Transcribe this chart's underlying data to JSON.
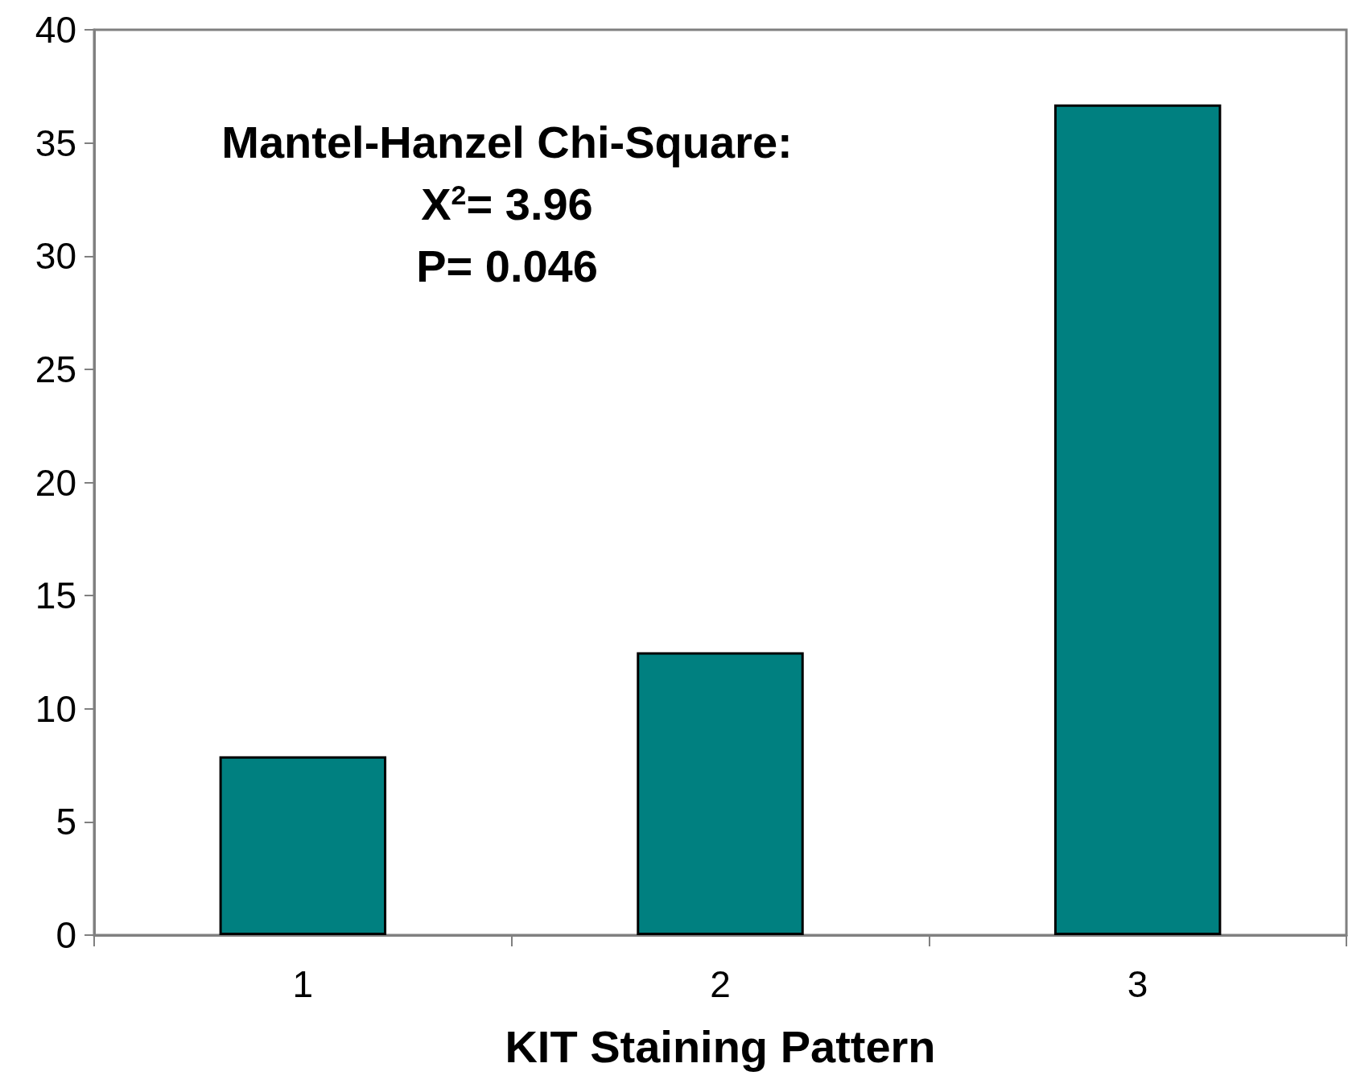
{
  "chart_data": {
    "type": "bar",
    "xlabel": "KIT Staining Pattern",
    "categories": [
      "1",
      "2",
      "3"
    ],
    "values": [
      7.9,
      12.5,
      36.7
    ],
    "color": "#008080",
    "ylim": [
      0,
      40
    ],
    "yticks": [
      0,
      5,
      10,
      15,
      20,
      25,
      30,
      35,
      40
    ],
    "annotations": [
      "Mantel-Hanzel Chi-Square:",
      "X$^{2}$= 3.96",
      "P= 0.046"
    ]
  }
}
